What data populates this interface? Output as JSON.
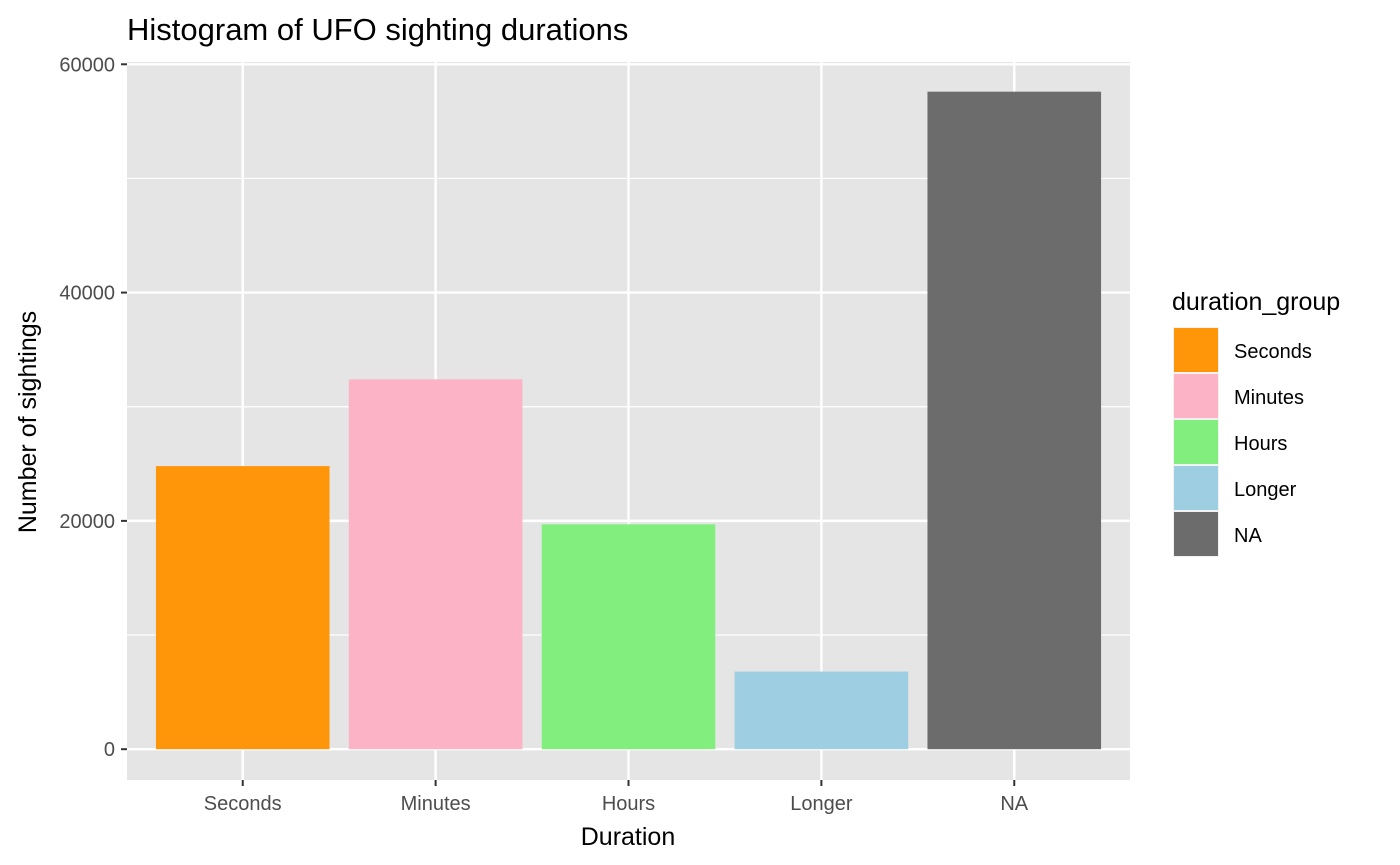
{
  "chart_data": {
    "type": "bar",
    "title": "Histogram of UFO sighting durations",
    "xlabel": "Duration",
    "ylabel": "Number of sightings",
    "categories": [
      "Seconds",
      "Minutes",
      "Hours",
      "Longer",
      "NA"
    ],
    "values": [
      24800,
      32400,
      19700,
      6800,
      57600
    ],
    "colors": [
      "#ff960a",
      "#fcb3c5",
      "#82ee7e",
      "#9ecee1",
      "#6c6c6c"
    ],
    "ylim": [
      -2700,
      60200
    ],
    "yticks": [
      0,
      20000,
      40000,
      60000
    ],
    "yticks_minor": [
      10000,
      30000,
      50000
    ],
    "ytick_labels": [
      "0",
      "20000",
      "40000",
      "60000"
    ],
    "grid": true,
    "panel_background": "#e5e5e5",
    "grid_color": "#ffffff",
    "legend": {
      "title": "duration_group",
      "position": "right",
      "items": [
        "Seconds",
        "Minutes",
        "Hours",
        "Longer",
        "NA"
      ]
    }
  }
}
